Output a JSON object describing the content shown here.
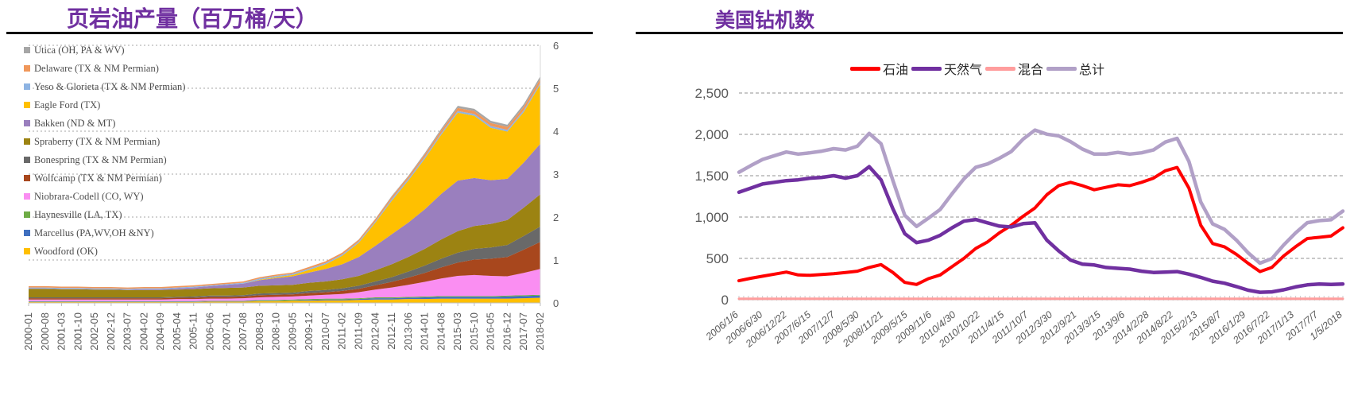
{
  "chart_data": [
    {
      "type": "area",
      "stacked": true,
      "title": "页岩油产量（百万桶/天）",
      "ylabel": "",
      "y_ticks": [
        "0",
        "1",
        "2",
        "3",
        "4",
        "5",
        "6"
      ],
      "ylim": [
        0,
        6
      ],
      "grid": "dashed-horizontal",
      "legend_position": "inside-left",
      "y_axis_side": "right",
      "x_labels": [
        "2000-01",
        "2000-08",
        "2001-03",
        "2001-10",
        "2002-05",
        "2002-12",
        "2003-07",
        "2004-02",
        "2004-09",
        "2005-04",
        "2005-11",
        "2006-06",
        "2007-01",
        "2007-08",
        "2008-03",
        "2008-10",
        "2009-05",
        "2009-12",
        "2010-07",
        "2011-02",
        "2011-09",
        "2012-04",
        "2012-11",
        "2013-06",
        "2014-01",
        "2014-08",
        "2015-03",
        "2015-10",
        "2016-05",
        "2016-12",
        "2017-07",
        "2018-02"
      ],
      "stack_order_bottom_to_top": [
        "woodford",
        "marcellus",
        "haynesville",
        "niobrara",
        "wolfcamp",
        "bonespring",
        "spraberry",
        "bakken",
        "eagleford",
        "yeso",
        "delaware",
        "utica"
      ],
      "series": [
        {
          "id": "utica",
          "name": "Utica (OH, PA & WV)",
          "color": "#A6A6A6",
          "values": [
            0,
            0,
            0,
            0,
            0,
            0,
            0,
            0,
            0,
            0,
            0,
            0,
            0,
            0,
            0,
            0,
            0,
            0,
            0,
            0,
            0.01,
            0.01,
            0.02,
            0.02,
            0.03,
            0.04,
            0.05,
            0.05,
            0.05,
            0.05,
            0.06,
            0.06
          ]
        },
        {
          "id": "delaware",
          "name": "Delaware (TX & NM Permian)",
          "color": "#F0975A",
          "values": [
            0.03,
            0.03,
            0.03,
            0.03,
            0.03,
            0.03,
            0.03,
            0.03,
            0.03,
            0.03,
            0.03,
            0.03,
            0.03,
            0.03,
            0.03,
            0.03,
            0.03,
            0.04,
            0.04,
            0.04,
            0.04,
            0.05,
            0.05,
            0.05,
            0.06,
            0.06,
            0.07,
            0.07,
            0.07,
            0.07,
            0.08,
            0.09
          ]
        },
        {
          "id": "yeso",
          "name": "Yeso & Glorieta (TX & NM Permian)",
          "color": "#8EB4E3",
          "values": [
            0.02,
            0.02,
            0.02,
            0.02,
            0.02,
            0.02,
            0.02,
            0.02,
            0.02,
            0.02,
            0.02,
            0.02,
            0.02,
            0.02,
            0.03,
            0.03,
            0.03,
            0.03,
            0.03,
            0.03,
            0.03,
            0.03,
            0.04,
            0.04,
            0.04,
            0.04,
            0.04,
            0.04,
            0.04,
            0.04,
            0.04,
            0.04
          ]
        },
        {
          "id": "eagleford",
          "name": "Eagle Ford (TX)",
          "color": "#FFC000",
          "values": [
            0,
            0,
            0,
            0,
            0,
            0,
            0,
            0,
            0,
            0,
            0,
            0,
            0,
            0,
            0.01,
            0.02,
            0.03,
            0.06,
            0.11,
            0.2,
            0.33,
            0.54,
            0.78,
            0.98,
            1.18,
            1.38,
            1.58,
            1.45,
            1.22,
            1.1,
            1.18,
            1.38
          ]
        },
        {
          "id": "bakken",
          "name": "Bakken (ND & MT)",
          "color": "#9A7FBE",
          "values": [
            0.01,
            0.01,
            0.01,
            0.01,
            0.01,
            0.01,
            0.01,
            0.02,
            0.02,
            0.03,
            0.04,
            0.05,
            0.07,
            0.09,
            0.13,
            0.17,
            0.2,
            0.24,
            0.29,
            0.35,
            0.44,
            0.57,
            0.7,
            0.8,
            0.92,
            1.06,
            1.18,
            1.12,
            1.02,
            0.96,
            1.05,
            1.18
          ]
        },
        {
          "id": "spraberry",
          "name": "Spraberry (TX & NM Permian)",
          "color": "#9C8312",
          "values": [
            0.2,
            0.2,
            0.19,
            0.19,
            0.18,
            0.18,
            0.17,
            0.17,
            0.17,
            0.17,
            0.17,
            0.17,
            0.18,
            0.18,
            0.18,
            0.18,
            0.18,
            0.19,
            0.2,
            0.21,
            0.23,
            0.26,
            0.3,
            0.34,
            0.39,
            0.45,
            0.5,
            0.53,
            0.55,
            0.58,
            0.66,
            0.75
          ]
        },
        {
          "id": "bonespring",
          "name": "Bonespring (TX & NM Permian)",
          "color": "#696969",
          "values": [
            0.02,
            0.02,
            0.02,
            0.02,
            0.02,
            0.02,
            0.02,
            0.02,
            0.02,
            0.02,
            0.03,
            0.03,
            0.03,
            0.03,
            0.04,
            0.04,
            0.04,
            0.05,
            0.05,
            0.06,
            0.07,
            0.09,
            0.11,
            0.14,
            0.17,
            0.2,
            0.23,
            0.25,
            0.26,
            0.28,
            0.32,
            0.36
          ]
        },
        {
          "id": "wolfcamp",
          "name": "Wolfcamp (TX & NM Permian)",
          "color": "#A8471D",
          "values": [
            0.03,
            0.03,
            0.03,
            0.03,
            0.03,
            0.03,
            0.03,
            0.03,
            0.03,
            0.03,
            0.03,
            0.04,
            0.04,
            0.04,
            0.05,
            0.05,
            0.05,
            0.06,
            0.06,
            0.07,
            0.08,
            0.1,
            0.13,
            0.17,
            0.21,
            0.26,
            0.31,
            0.36,
            0.4,
            0.45,
            0.54,
            0.63
          ]
        },
        {
          "id": "niobrara",
          "name": "Niobrara-Codell (CO, WY)",
          "color": "#FA8EF2",
          "values": [
            0.04,
            0.04,
            0.04,
            0.04,
            0.04,
            0.04,
            0.04,
            0.04,
            0.04,
            0.05,
            0.05,
            0.05,
            0.05,
            0.06,
            0.06,
            0.07,
            0.07,
            0.08,
            0.09,
            0.11,
            0.14,
            0.18,
            0.23,
            0.28,
            0.34,
            0.41,
            0.47,
            0.49,
            0.47,
            0.45,
            0.52,
            0.6
          ]
        },
        {
          "id": "haynesville",
          "name": "Haynesville (LA, TX)",
          "color": "#6FAC46",
          "values": [
            0.01,
            0.01,
            0.01,
            0.01,
            0.01,
            0.01,
            0.01,
            0.01,
            0.01,
            0.01,
            0.01,
            0.01,
            0.01,
            0.01,
            0.02,
            0.02,
            0.02,
            0.02,
            0.02,
            0.02,
            0.02,
            0.02,
            0.02,
            0.02,
            0.02,
            0.02,
            0.02,
            0.02,
            0.02,
            0.02,
            0.02,
            0.02
          ]
        },
        {
          "id": "marcellus",
          "name": "Marcellus (PA,WV,OH &NY)",
          "color": "#3F6FBF",
          "values": [
            0.01,
            0.01,
            0.01,
            0.01,
            0.01,
            0.01,
            0.01,
            0.01,
            0.01,
            0.01,
            0.01,
            0.01,
            0.01,
            0.01,
            0.01,
            0.01,
            0.01,
            0.02,
            0.02,
            0.02,
            0.02,
            0.03,
            0.03,
            0.03,
            0.04,
            0.04,
            0.04,
            0.04,
            0.04,
            0.05,
            0.05,
            0.05
          ]
        },
        {
          "id": "woodford",
          "name": "Woodford (OK)",
          "color": "#FFBF00",
          "values": [
            0.02,
            0.02,
            0.02,
            0.02,
            0.02,
            0.02,
            0.02,
            0.02,
            0.02,
            0.02,
            0.02,
            0.03,
            0.03,
            0.03,
            0.04,
            0.04,
            0.05,
            0.05,
            0.06,
            0.06,
            0.07,
            0.08,
            0.08,
            0.09,
            0.09,
            0.1,
            0.1,
            0.1,
            0.1,
            0.1,
            0.11,
            0.12
          ]
        }
      ]
    },
    {
      "type": "line",
      "title": "美国钻机数",
      "y_ticks": [
        "0",
        "500",
        "1,000",
        "1,500",
        "2,000",
        "2,500"
      ],
      "ylim": [
        0,
        2500
      ],
      "grid": "dashed-horizontal",
      "legend_position": "top-center",
      "x_labels": [
        "2006/1/6",
        "2006/6/30",
        "2006/12/22",
        "2007/6/15",
        "2007/12/7",
        "2008/5/30",
        "2008/11/21",
        "2009/5/15",
        "2009/11/6",
        "2010/4/30",
        "2010/10/22",
        "2011/4/15",
        "2011/10/7",
        "2012/3/30",
        "2012/9/21",
        "2013/3/15",
        "2013/9/6",
        "2014/2/28",
        "2014/8/22",
        "2015/2/13",
        "2015/8/7",
        "2016/1/29",
        "2016/7/22",
        "2017/1/13",
        "2017/7/7",
        "1/5/2018"
      ],
      "series": [
        {
          "id": "oil",
          "name": "石油",
          "color": "#FF0000",
          "width": 4,
          "values": [
            230,
            260,
            285,
            310,
            335,
            300,
            295,
            305,
            315,
            330,
            345,
            390,
            425,
            330,
            210,
            185,
            255,
            300,
            400,
            500,
            620,
            700,
            810,
            900,
            1010,
            1110,
            1270,
            1380,
            1420,
            1380,
            1330,
            1360,
            1390,
            1380,
            1420,
            1470,
            1560,
            1600,
            1350,
            900,
            680,
            640,
            550,
            440,
            340,
            390,
            530,
            640,
            740,
            755,
            770,
            870
          ]
        },
        {
          "id": "gas",
          "name": "天然气",
          "color": "#7030A0",
          "width": 4.5,
          "values": [
            1300,
            1350,
            1400,
            1420,
            1440,
            1450,
            1470,
            1480,
            1500,
            1470,
            1500,
            1610,
            1450,
            1100,
            800,
            690,
            720,
            780,
            870,
            950,
            970,
            930,
            890,
            880,
            920,
            930,
            720,
            590,
            480,
            430,
            420,
            390,
            380,
            370,
            345,
            330,
            335,
            340,
            310,
            270,
            225,
            200,
            160,
            115,
            90,
            95,
            120,
            155,
            180,
            190,
            185,
            190
          ]
        },
        {
          "id": "mixed",
          "name": "混合",
          "color": "#FF9D9D",
          "width": 3,
          "values": [
            12,
            12,
            12,
            12,
            12,
            12,
            12,
            12,
            12,
            12,
            12,
            12,
            12,
            12,
            12,
            12,
            12,
            12,
            12,
            12,
            12,
            12,
            12,
            12,
            12,
            12,
            12,
            12,
            12,
            12,
            12,
            12,
            12,
            12,
            12,
            12,
            12,
            12,
            12,
            12,
            12,
            12,
            12,
            12,
            12,
            12,
            12,
            12,
            12,
            12,
            12,
            12
          ]
        },
        {
          "id": "total",
          "name": "总计",
          "color": "#B1A0C7",
          "width": 4.5,
          "values": [
            1542,
            1622,
            1697,
            1742,
            1787,
            1762,
            1777,
            1797,
            1827,
            1812,
            1857,
            2012,
            1887,
            1442,
            1022,
            887,
            987,
            1092,
            1282,
            1462,
            1602,
            1642,
            1712,
            1792,
            1942,
            2052,
            2002,
            1982,
            1912,
            1822,
            1762,
            1762,
            1782,
            1762,
            1777,
            1812,
            1907,
            1952,
            1672,
            1182,
            917,
            852,
            722,
            567,
            442,
            497,
            662,
            807,
            932,
            957,
            967,
            1072
          ]
        }
      ]
    }
  ]
}
